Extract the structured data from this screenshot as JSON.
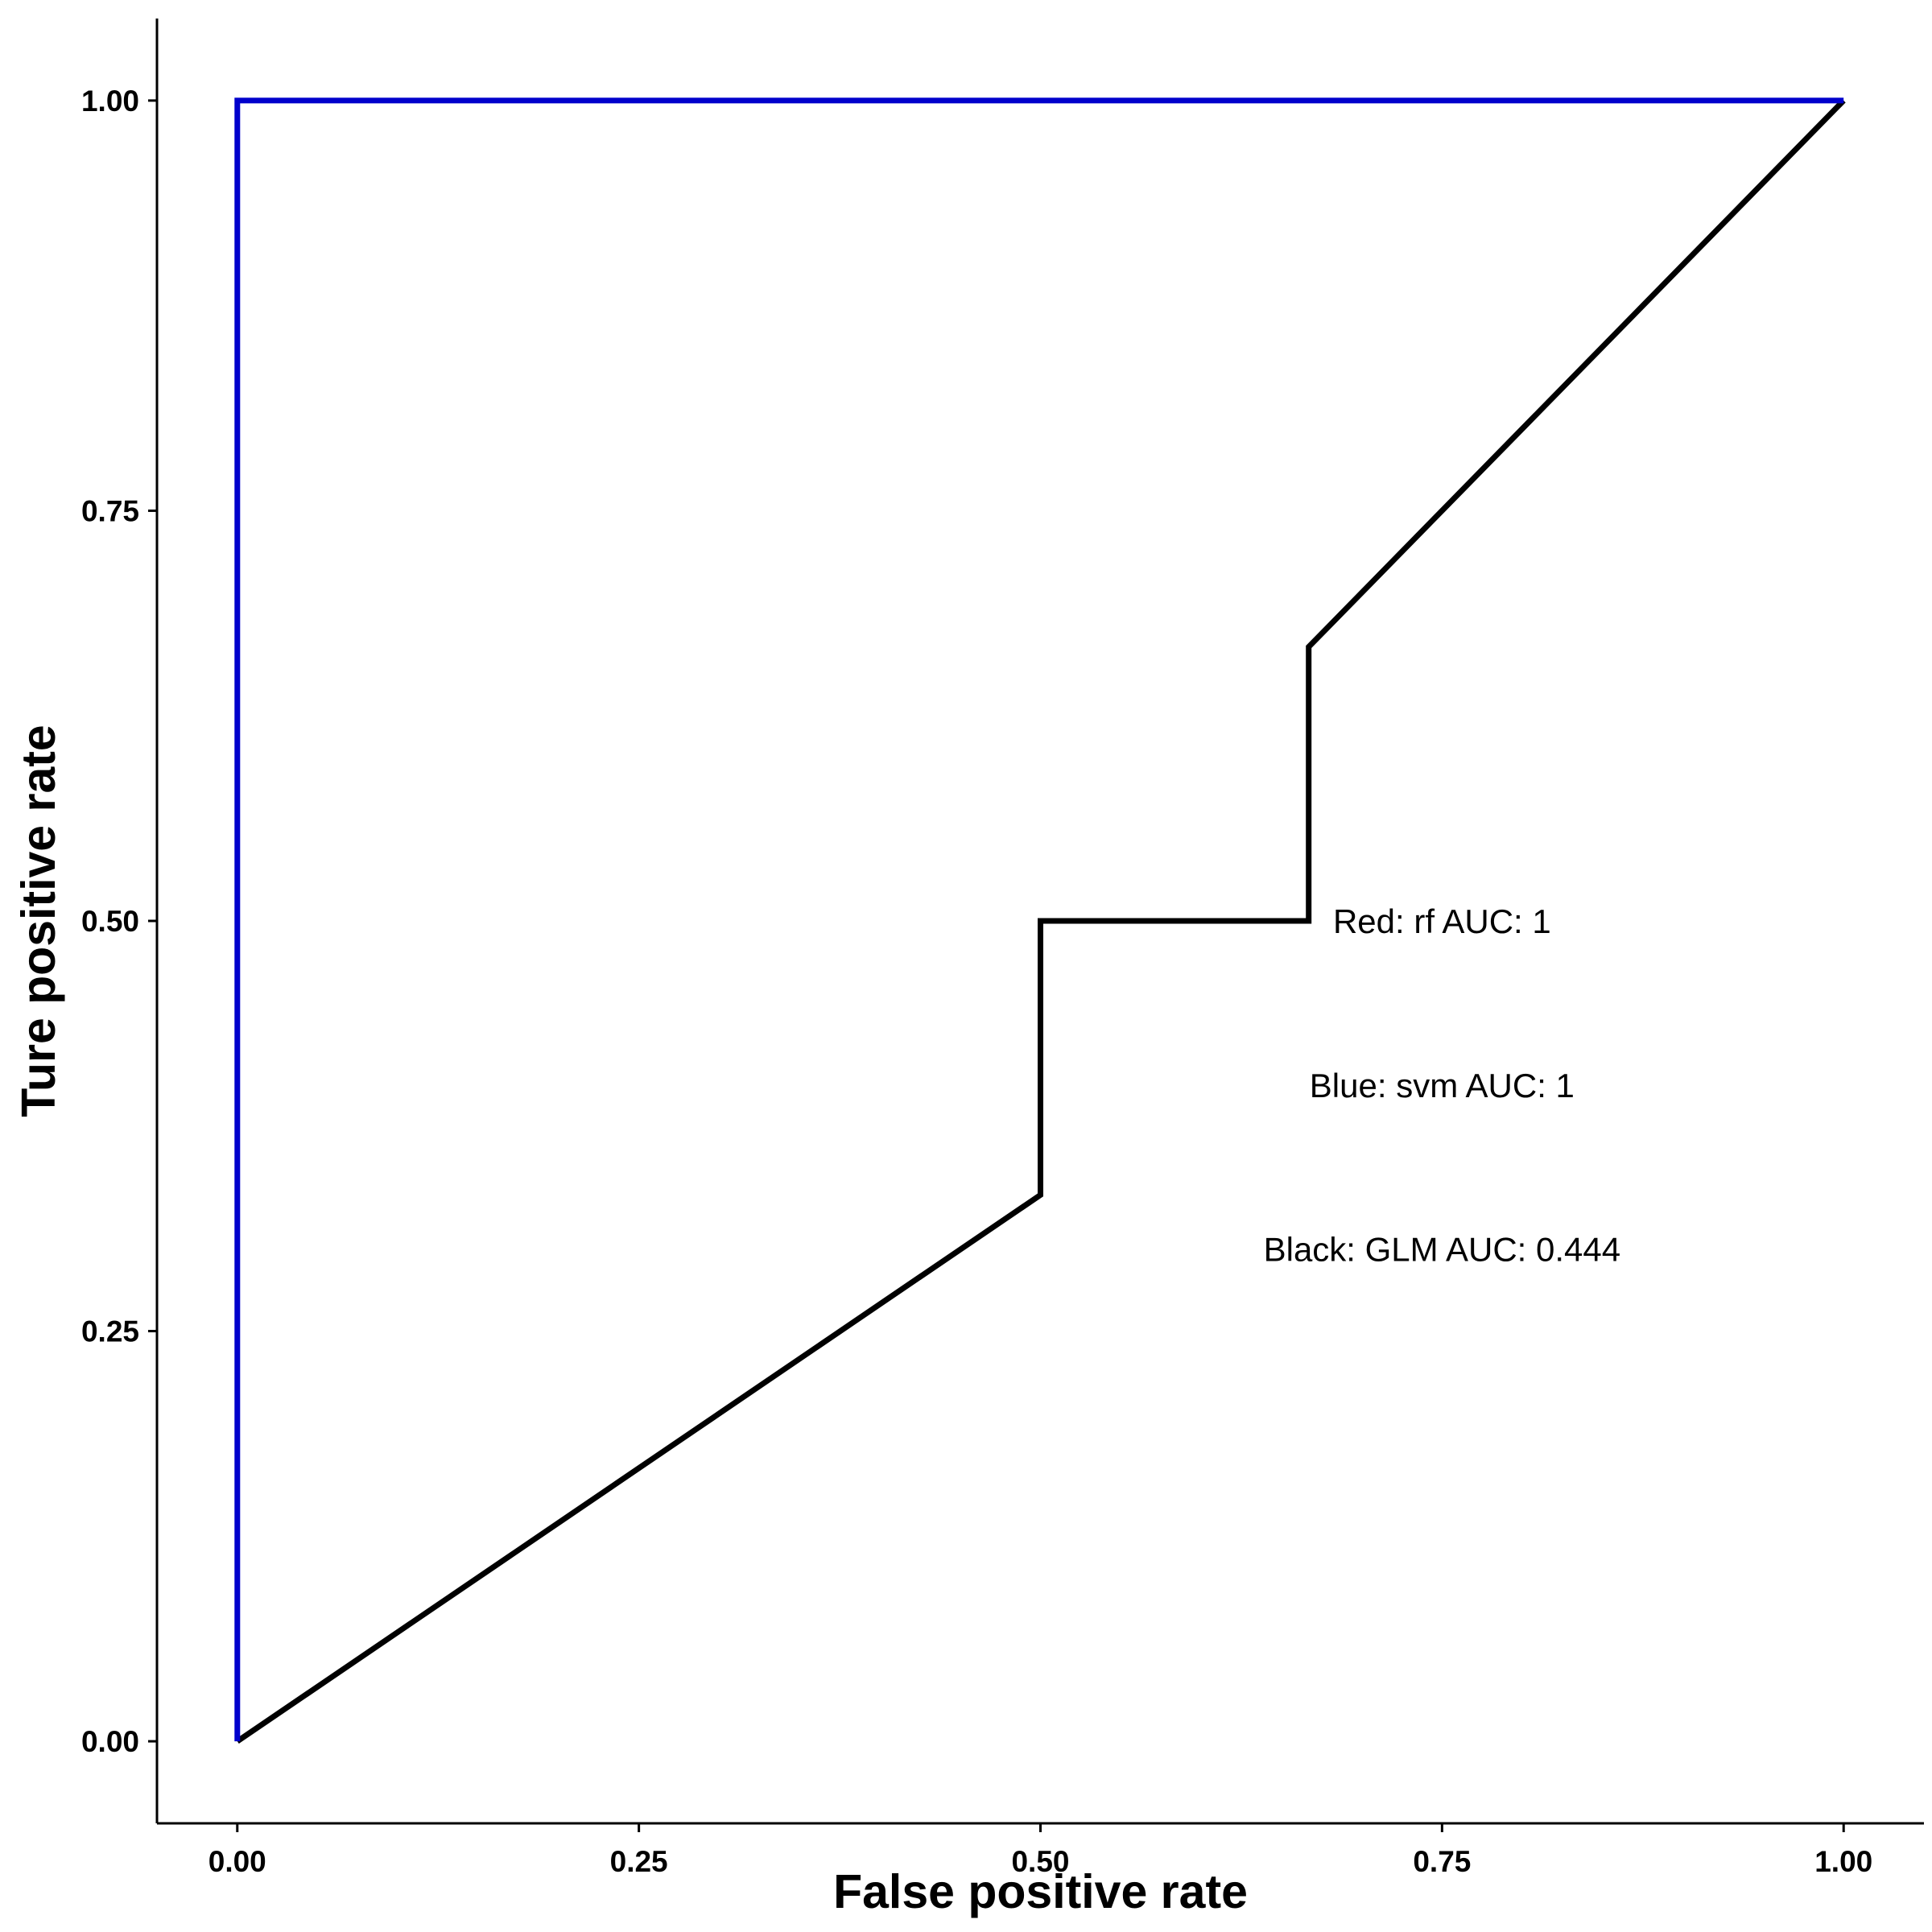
{
  "chart_data": {
    "type": "line",
    "xlabel": "False positive rate",
    "ylabel": "Ture positive rate",
    "xlim": [
      -0.05,
      1.05
    ],
    "ylim": [
      -0.05,
      1.05
    ],
    "x_ticks": [
      0,
      0.25,
      0.5,
      0.75,
      1
    ],
    "x_tick_labels": [
      "0.00",
      "0.25",
      "0.50",
      "0.75",
      "1.00"
    ],
    "y_ticks": [
      0,
      0.25,
      0.5,
      0.75,
      1
    ],
    "y_tick_labels": [
      "0.00",
      "0.25",
      "0.50",
      "0.75",
      "1.00"
    ],
    "grid": false,
    "series": [
      {
        "color": "#000000",
        "x": [
          0,
          0.5,
          0.5,
          0.667,
          0.667,
          1
        ],
        "y": [
          0,
          0.333,
          0.5,
          0.5,
          0.667,
          1
        ]
      },
      {
        "color": "#0000CC",
        "x": [
          0,
          0,
          1
        ],
        "y": [
          0,
          1,
          1
        ]
      }
    ],
    "annotations": [
      {
        "text": "Red: rf AUC: 1",
        "x": 0.75,
        "y": 0.5
      },
      {
        "text": "Blue: svm AUC: 1",
        "x": 0.75,
        "y": 0.4
      },
      {
        "text": "Black: GLM AUC: 0.444",
        "x": 0.75,
        "y": 0.3
      }
    ]
  }
}
